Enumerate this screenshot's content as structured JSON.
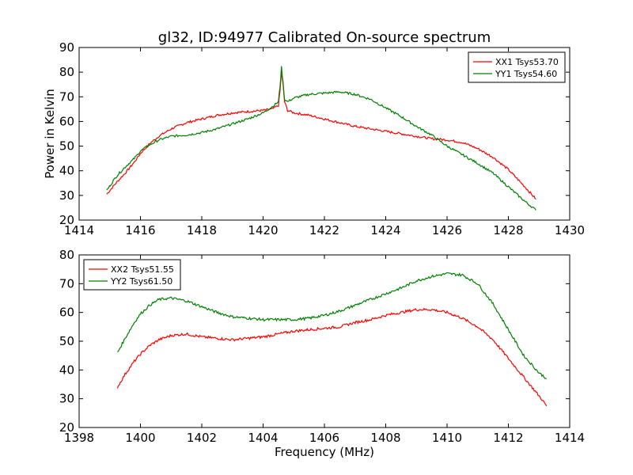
{
  "figure": {
    "title": "gl32, ID:94977 Calibrated On-source spectrum",
    "ylabel": "Power in Kelvin",
    "xlabel": "Frequency (MHz)"
  },
  "chart_data": [
    {
      "type": "line",
      "title": "gl32, ID:94977 Calibrated On-source spectrum",
      "xlabel": "",
      "ylabel": "Power in Kelvin",
      "xlim": [
        1414,
        1430
      ],
      "ylim": [
        20,
        90
      ],
      "xticks": [
        1414,
        1416,
        1418,
        1420,
        1422,
        1424,
        1426,
        1428,
        1430
      ],
      "yticks": [
        20,
        30,
        40,
        50,
        60,
        70,
        80,
        90
      ],
      "legend_position": "top-right",
      "grid": false,
      "series": [
        {
          "name": "XX1 Tsys53.70",
          "color": "#ff0000",
          "x": [
            1414.9,
            1415.2,
            1415.5,
            1415.8,
            1416.0,
            1416.3,
            1416.6,
            1417.0,
            1417.5,
            1418.0,
            1418.5,
            1419.0,
            1419.5,
            1420.0,
            1420.3,
            1420.5,
            1420.55,
            1420.6,
            1420.65,
            1420.7,
            1420.8,
            1421.0,
            1421.5,
            1422.0,
            1422.5,
            1423.0,
            1423.5,
            1424.0,
            1424.5,
            1425.0,
            1425.5,
            1426.0,
            1426.5,
            1427.0,
            1427.5,
            1428.0,
            1428.5,
            1428.9
          ],
          "y": [
            30.5,
            35,
            39,
            43.5,
            47,
            51,
            54,
            57,
            59.5,
            61,
            62.5,
            63.5,
            64,
            64.5,
            65,
            66.5,
            72,
            80,
            75,
            68,
            64.5,
            63.5,
            62.5,
            61,
            59.5,
            58,
            57,
            56,
            55,
            54,
            53,
            52.5,
            51.5,
            49,
            45.5,
            40.5,
            34,
            28.5
          ]
        },
        {
          "name": "YY1 Tsys54.60",
          "color": "#008000",
          "x": [
            1414.9,
            1415.2,
            1415.5,
            1415.8,
            1416.0,
            1416.3,
            1416.6,
            1417.0,
            1417.5,
            1418.0,
            1418.5,
            1419.0,
            1419.5,
            1420.0,
            1420.3,
            1420.5,
            1420.55,
            1420.6,
            1420.65,
            1420.7,
            1420.8,
            1421.0,
            1421.5,
            1422.0,
            1422.5,
            1423.0,
            1423.5,
            1424.0,
            1424.5,
            1425.0,
            1425.5,
            1426.0,
            1426.5,
            1427.0,
            1427.5,
            1428.0,
            1428.5,
            1428.9
          ],
          "y": [
            32,
            37.5,
            41.5,
            45,
            48,
            50.5,
            52.5,
            54,
            54.5,
            55.5,
            57,
            59,
            61,
            63.5,
            66,
            68,
            74,
            82,
            76,
            69,
            68,
            69.5,
            71,
            71.5,
            72,
            71,
            69,
            65.5,
            62,
            58,
            54.5,
            50,
            46.5,
            43,
            39,
            33.5,
            28,
            24
          ]
        }
      ]
    },
    {
      "type": "line",
      "title": "",
      "xlabel": "Frequency (MHz)",
      "ylabel": "",
      "xlim": [
        1398,
        1414
      ],
      "ylim": [
        20,
        80
      ],
      "xticks": [
        1398,
        1400,
        1402,
        1404,
        1406,
        1408,
        1410,
        1412,
        1414
      ],
      "yticks": [
        20,
        30,
        40,
        50,
        60,
        70,
        80
      ],
      "legend_position": "top-left",
      "grid": false,
      "series": [
        {
          "name": "XX2 Tsys51.55",
          "color": "#ff0000",
          "x": [
            1399.25,
            1399.5,
            1399.8,
            1400.0,
            1400.3,
            1400.6,
            1401.0,
            1401.5,
            1402.0,
            1402.5,
            1403.0,
            1403.5,
            1404.0,
            1404.5,
            1405.0,
            1405.5,
            1406.0,
            1406.5,
            1407.0,
            1407.5,
            1408.0,
            1408.5,
            1409.0,
            1409.5,
            1410.0,
            1410.5,
            1411.0,
            1411.5,
            1412.0,
            1412.5,
            1413.0,
            1413.25
          ],
          "y": [
            34,
            38.5,
            43,
            45.5,
            48.5,
            50.5,
            52,
            52.5,
            51.5,
            51,
            50.5,
            51,
            51.5,
            52.5,
            53.5,
            54,
            54.5,
            55,
            56.5,
            57.5,
            59,
            60,
            61,
            61,
            60,
            58,
            55,
            50.5,
            44,
            37.5,
            31,
            27.5
          ]
        },
        {
          "name": "YY2 Tsys61.50",
          "color": "#008000",
          "x": [
            1399.25,
            1399.5,
            1399.8,
            1400.0,
            1400.3,
            1400.6,
            1401.0,
            1401.5,
            1402.0,
            1402.5,
            1403.0,
            1403.5,
            1404.0,
            1404.5,
            1405.0,
            1405.5,
            1406.0,
            1406.5,
            1407.0,
            1407.5,
            1408.0,
            1408.5,
            1409.0,
            1409.5,
            1410.0,
            1410.5,
            1411.0,
            1411.5,
            1412.0,
            1412.5,
            1413.0,
            1413.25
          ],
          "y": [
            46,
            51,
            56.5,
            59.5,
            62.5,
            64.5,
            65,
            64,
            62,
            60,
            58.5,
            58,
            57.5,
            57.5,
            57.5,
            58,
            59,
            60.5,
            62.5,
            64.5,
            66.5,
            68.5,
            71,
            72.5,
            73.5,
            73,
            70,
            63,
            54,
            45,
            39,
            37
          ]
        }
      ]
    }
  ]
}
